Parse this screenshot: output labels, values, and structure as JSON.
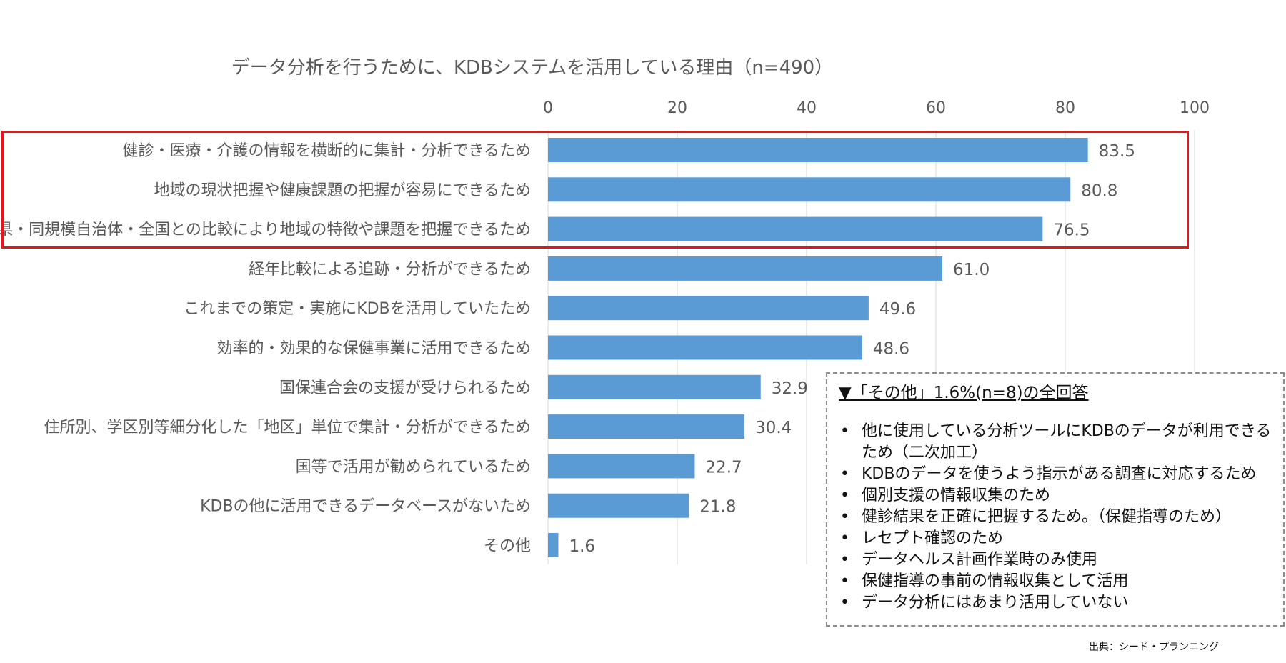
{
  "chart_data": {
    "type": "bar",
    "orientation": "horizontal",
    "title": "データ分析を行うために、KDBシステムを活用している理由（n=490）",
    "categories": [
      "健診・医療・介護の情報を横断的に集計・分析できるため",
      "地域の現状把握や健康課題の把握が容易にできるため",
      "県・同規模自治体・全国との比較により地域の特徴や課題を把握できるため",
      "経年比較による追跡・分析ができるため",
      "これまでの策定・実施にKDBを活用していたため",
      "効率的・効果的な保健事業に活用できるため",
      "国保連合会の支援が受けられるため",
      "住所別、学区別等細分化した「地区」単位で集計・分析ができるため",
      "国等で活用が勧められているため",
      "KDBの他に活用できるデータベースがないため",
      "その他"
    ],
    "values": [
      83.5,
      80.8,
      76.5,
      61.0,
      49.6,
      48.6,
      32.9,
      30.4,
      22.7,
      21.8,
      1.6
    ],
    "value_labels": [
      "83.5",
      "80.8",
      "76.5",
      "61.0",
      "49.6",
      "48.6",
      "32.9",
      "30.4",
      "22.7",
      "21.8",
      "1.6"
    ],
    "xlim": [
      0,
      100
    ],
    "x_ticks": [
      0,
      20,
      40,
      60,
      80,
      100
    ],
    "x_tick_labels": [
      "0",
      "20",
      "40",
      "60",
      "80",
      "100"
    ],
    "x_axis_position": "top",
    "grid": true,
    "bar_color": "#5b9bd5",
    "highlight_color": "#e8141b",
    "highlighted_categories": [
      0,
      1,
      2
    ]
  },
  "other_answers": {
    "heading": "▼「その他」1.6%(n=8)の全回答",
    "items": [
      "他に使用している分析ツールにKDBのデータが利用できるため（二次加工）",
      "KDBのデータを使うよう指示がある調査に対応するため",
      "個別支援の情報収集のため",
      "健診結果を正確に把握するため。（保健指導のため）",
      "レセプト確認のため",
      "データヘルス計画作業時のみ使用",
      "保健指導の事前の情報収集として活用",
      "データ分析にはあまり活用していない"
    ]
  },
  "source": "出典：シード・プランニング"
}
